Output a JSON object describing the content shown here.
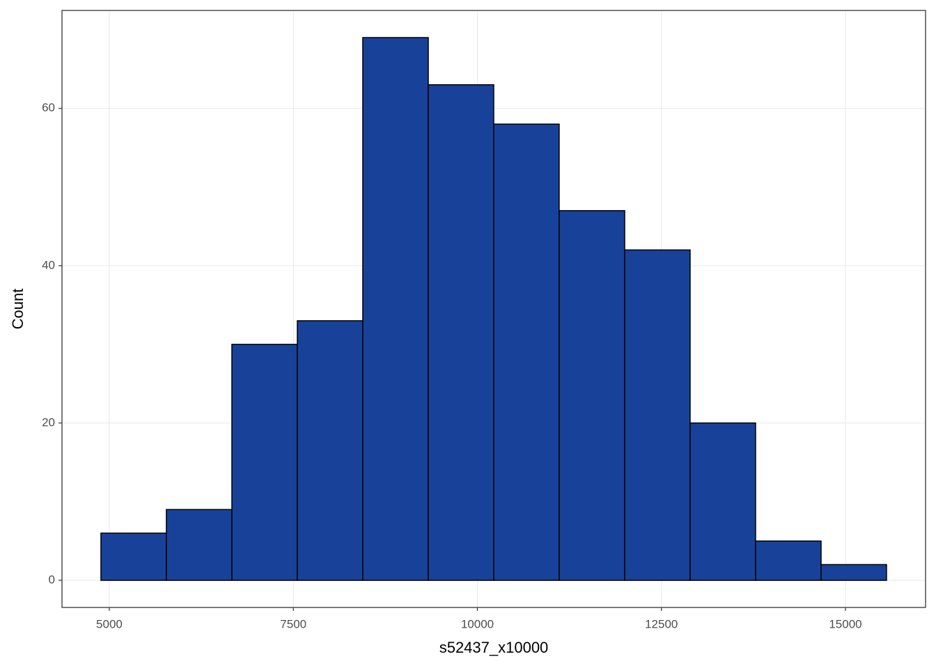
{
  "chart_data": {
    "type": "histogram",
    "x_label": "s52437_x10000",
    "y_label": "Count",
    "bins": [
      4886,
      5775,
      6665,
      7554,
      8443,
      9333,
      10222,
      11111,
      12001,
      12890,
      13779,
      14669,
      15558
    ],
    "values": [
      6,
      9,
      30,
      33,
      69,
      63,
      58,
      47,
      42,
      20,
      5,
      2
    ],
    "color": "#18429a",
    "edgecolor": "#000000",
    "xlim": [
      4357,
      16088
    ],
    "ylim": [
      -3.45,
      72.45
    ],
    "xticks": [
      5000,
      7500,
      10000,
      12500,
      15000
    ],
    "yticks": [
      0,
      20,
      40,
      60
    ],
    "grid": true
  }
}
